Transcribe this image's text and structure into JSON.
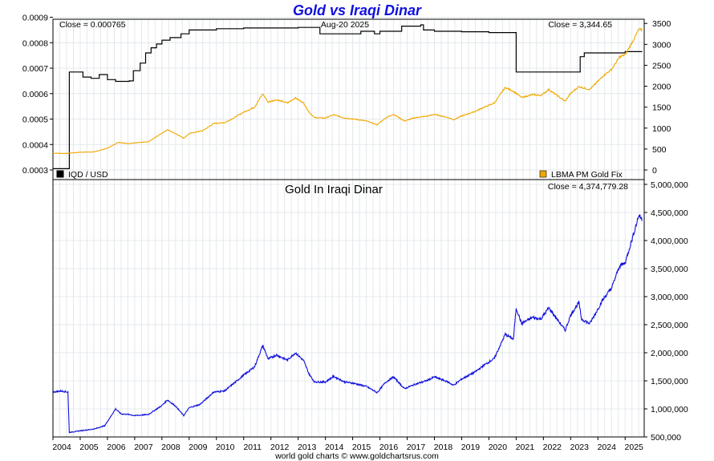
{
  "header": {
    "title": "Gold vs Iraqi Dinar",
    "date": "Aug-20  2025",
    "close_left": "Close = 0.000765",
    "close_right": "Close = 3,344.65",
    "close_lower": "Close = 4,374,779.28",
    "lower_title": "Gold In Iraqi Dinar",
    "footer": "world gold charts © www.goldchartsrus.com"
  },
  "legend": {
    "left": {
      "label": "IQD / USD",
      "color": "#000000"
    },
    "right": {
      "label": "LBMA PM Gold Fix",
      "color": "#f0a800"
    }
  },
  "chart_data": [
    {
      "type": "line",
      "title": "Gold vs Iraqi Dinar",
      "x_labels": [
        "2004",
        "2005",
        "2006",
        "2007",
        "2008",
        "2009",
        "2010",
        "2011",
        "2012",
        "2013",
        "2014",
        "2015",
        "2016",
        "2017",
        "2018",
        "2019",
        "2020",
        "2021",
        "2022",
        "2023",
        "2024",
        "2025"
      ],
      "xlim": [
        2004.0,
        2025.7
      ],
      "y_left_ticks": [
        "0.0003",
        "0.0004",
        "0.0005",
        "0.0006",
        "0.0007",
        "0.0008",
        "0.0009"
      ],
      "y_left_lim": [
        0.0003,
        0.00093
      ],
      "y_right_ticks": [
        "0",
        "500",
        "1000",
        "1500",
        "2000",
        "2500",
        "3000",
        "3500"
      ],
      "y_right_lim": [
        0,
        3600
      ],
      "grid": true,
      "legend_placement": "bottom",
      "series": [
        {
          "name": "IQD / USD",
          "axis": "left",
          "color": "#000000",
          "step": true,
          "points": [
            [
              2004.0,
              0.000305
            ],
            [
              2004.55,
              0.000305
            ],
            [
              2004.6,
              0.000685
            ],
            [
              2005.0,
              0.000685
            ],
            [
              2005.1,
              0.000665
            ],
            [
              2005.4,
              0.00066
            ],
            [
              2005.7,
              0.000675
            ],
            [
              2006.0,
              0.000655
            ],
            [
              2006.3,
              0.000648
            ],
            [
              2006.8,
              0.00065
            ],
            [
              2006.95,
              0.00069
            ],
            [
              2007.2,
              0.00072
            ],
            [
              2007.4,
              0.00076
            ],
            [
              2007.6,
              0.00078
            ],
            [
              2007.8,
              0.000795
            ],
            [
              2008.0,
              0.00081
            ],
            [
              2008.3,
              0.00082
            ],
            [
              2008.7,
              0.000835
            ],
            [
              2009.0,
              0.00085
            ],
            [
              2010.0,
              0.000855
            ],
            [
              2011.0,
              0.000858
            ],
            [
              2012.0,
              0.000858
            ],
            [
              2013.0,
              0.00086
            ],
            [
              2013.7,
              0.00086
            ],
            [
              2013.8,
              0.000835
            ],
            [
              2014.5,
              0.000835
            ],
            [
              2015.2,
              0.000835
            ],
            [
              2015.3,
              0.000845
            ],
            [
              2015.8,
              0.000835
            ],
            [
              2016.0,
              0.000845
            ],
            [
              2016.6,
              0.000845
            ],
            [
              2016.8,
              0.000865
            ],
            [
              2017.5,
              0.00087
            ],
            [
              2017.6,
              0.00085
            ],
            [
              2018.0,
              0.000845
            ],
            [
              2019.0,
              0.000843
            ],
            [
              2020.0,
              0.00084
            ],
            [
              2020.9,
              0.00084
            ],
            [
              2021.0,
              0.000685
            ],
            [
              2022.0,
              0.000685
            ],
            [
              2023.0,
              0.000685
            ],
            [
              2023.3,
              0.000685
            ],
            [
              2023.35,
              0.000745
            ],
            [
              2023.5,
              0.00076
            ],
            [
              2024.0,
              0.00076
            ],
            [
              2025.0,
              0.000765
            ],
            [
              2025.63,
              0.000765
            ]
          ]
        },
        {
          "name": "LBMA PM Gold Fix",
          "axis": "right",
          "color": "#f0a800",
          "points": [
            [
              2004.0,
              400
            ],
            [
              2004.5,
              395
            ],
            [
              2005.0,
              425
            ],
            [
              2005.5,
              430
            ],
            [
              2006.0,
              520
            ],
            [
              2006.4,
              660
            ],
            [
              2006.8,
              630
            ],
            [
              2007.0,
              650
            ],
            [
              2007.5,
              670
            ],
            [
              2008.0,
              880
            ],
            [
              2008.2,
              960
            ],
            [
              2008.5,
              870
            ],
            [
              2008.8,
              760
            ],
            [
              2009.0,
              870
            ],
            [
              2009.5,
              940
            ],
            [
              2009.9,
              1110
            ],
            [
              2010.3,
              1130
            ],
            [
              2010.6,
              1230
            ],
            [
              2011.0,
              1380
            ],
            [
              2011.4,
              1500
            ],
            [
              2011.7,
              1820
            ],
            [
              2011.9,
              1620
            ],
            [
              2012.2,
              1680
            ],
            [
              2012.6,
              1600
            ],
            [
              2012.9,
              1720
            ],
            [
              2013.2,
              1600
            ],
            [
              2013.4,
              1380
            ],
            [
              2013.6,
              1250
            ],
            [
              2014.0,
              1240
            ],
            [
              2014.3,
              1320
            ],
            [
              2014.7,
              1240
            ],
            [
              2015.0,
              1220
            ],
            [
              2015.5,
              1170
            ],
            [
              2015.9,
              1080
            ],
            [
              2016.2,
              1240
            ],
            [
              2016.5,
              1330
            ],
            [
              2016.9,
              1170
            ],
            [
              2017.3,
              1250
            ],
            [
              2017.7,
              1280
            ],
            [
              2018.0,
              1330
            ],
            [
              2018.5,
              1250
            ],
            [
              2018.7,
              1200
            ],
            [
              2019.0,
              1290
            ],
            [
              2019.5,
              1400
            ],
            [
              2019.8,
              1490
            ],
            [
              2020.2,
              1600
            ],
            [
              2020.6,
              1970
            ],
            [
              2020.9,
              1880
            ],
            [
              2021.2,
              1730
            ],
            [
              2021.6,
              1800
            ],
            [
              2021.9,
              1780
            ],
            [
              2022.2,
              1920
            ],
            [
              2022.5,
              1780
            ],
            [
              2022.8,
              1640
            ],
            [
              2023.0,
              1830
            ],
            [
              2023.3,
              1990
            ],
            [
              2023.7,
              1920
            ],
            [
              2023.9,
              2050
            ],
            [
              2024.2,
              2250
            ],
            [
              2024.5,
              2400
            ],
            [
              2024.8,
              2700
            ],
            [
              2025.0,
              2750
            ],
            [
              2025.3,
              3100
            ],
            [
              2025.5,
              3350
            ],
            [
              2025.63,
              3345
            ]
          ]
        }
      ]
    },
    {
      "type": "line",
      "title": "Gold In Iraqi Dinar",
      "x_labels": [
        "2004",
        "2005",
        "2006",
        "2007",
        "2008",
        "2009",
        "2010",
        "2011",
        "2012",
        "2013",
        "2014",
        "2015",
        "2016",
        "2017",
        "2018",
        "2019",
        "2020",
        "2021",
        "2022",
        "2023",
        "2024",
        "2025"
      ],
      "xlim": [
        2004.0,
        2025.7
      ],
      "y_right_ticks": [
        "500,000",
        "1,000,000",
        "1,500,000",
        "2,000,000",
        "2,500,000",
        "3,000,000",
        "3,500,000",
        "4,000,000",
        "4,500,000",
        "5,000,000"
      ],
      "ylim": [
        500000,
        5000000
      ],
      "grid": true,
      "series": [
        {
          "name": "Gold In Iraqi Dinar",
          "color": "#1010dd",
          "points": [
            [
              2004.0,
              1300000
            ],
            [
              2004.3,
              1320000
            ],
            [
              2004.55,
              1300000
            ],
            [
              2004.6,
              580000
            ],
            [
              2005.0,
              610000
            ],
            [
              2005.5,
              640000
            ],
            [
              2005.9,
              700000
            ],
            [
              2006.3,
              1000000
            ],
            [
              2006.5,
              910000
            ],
            [
              2006.8,
              900000
            ],
            [
              2007.0,
              880000
            ],
            [
              2007.5,
              900000
            ],
            [
              2008.0,
              1060000
            ],
            [
              2008.2,
              1160000
            ],
            [
              2008.5,
              1050000
            ],
            [
              2008.8,
              880000
            ],
            [
              2009.0,
              1020000
            ],
            [
              2009.4,
              1080000
            ],
            [
              2009.9,
              1300000
            ],
            [
              2010.3,
              1320000
            ],
            [
              2010.6,
              1440000
            ],
            [
              2011.0,
              1600000
            ],
            [
              2011.4,
              1750000
            ],
            [
              2011.7,
              2130000
            ],
            [
              2011.9,
              1890000
            ],
            [
              2012.2,
              1960000
            ],
            [
              2012.6,
              1870000
            ],
            [
              2012.9,
              2000000
            ],
            [
              2013.2,
              1860000
            ],
            [
              2013.4,
              1620000
            ],
            [
              2013.6,
              1480000
            ],
            [
              2014.0,
              1480000
            ],
            [
              2014.3,
              1580000
            ],
            [
              2014.7,
              1480000
            ],
            [
              2015.0,
              1460000
            ],
            [
              2015.5,
              1400000
            ],
            [
              2015.9,
              1290000
            ],
            [
              2016.2,
              1470000
            ],
            [
              2016.5,
              1570000
            ],
            [
              2016.9,
              1360000
            ],
            [
              2017.3,
              1440000
            ],
            [
              2017.7,
              1500000
            ],
            [
              2018.0,
              1570000
            ],
            [
              2018.5,
              1480000
            ],
            [
              2018.7,
              1420000
            ],
            [
              2019.0,
              1530000
            ],
            [
              2019.5,
              1660000
            ],
            [
              2019.8,
              1770000
            ],
            [
              2020.2,
              1900000
            ],
            [
              2020.6,
              2330000
            ],
            [
              2020.9,
              2240000
            ],
            [
              2021.0,
              2800000
            ],
            [
              2021.2,
              2520000
            ],
            [
              2021.6,
              2630000
            ],
            [
              2021.9,
              2600000
            ],
            [
              2022.2,
              2800000
            ],
            [
              2022.5,
              2600000
            ],
            [
              2022.8,
              2400000
            ],
            [
              2023.0,
              2670000
            ],
            [
              2023.3,
              2900000
            ],
            [
              2023.4,
              2600000
            ],
            [
              2023.7,
              2520000
            ],
            [
              2023.9,
              2690000
            ],
            [
              2024.2,
              2960000
            ],
            [
              2024.5,
              3150000
            ],
            [
              2024.8,
              3550000
            ],
            [
              2025.0,
              3600000
            ],
            [
              2025.3,
              4100000
            ],
            [
              2025.5,
              4450000
            ],
            [
              2025.63,
              4375000
            ]
          ]
        }
      ]
    }
  ]
}
